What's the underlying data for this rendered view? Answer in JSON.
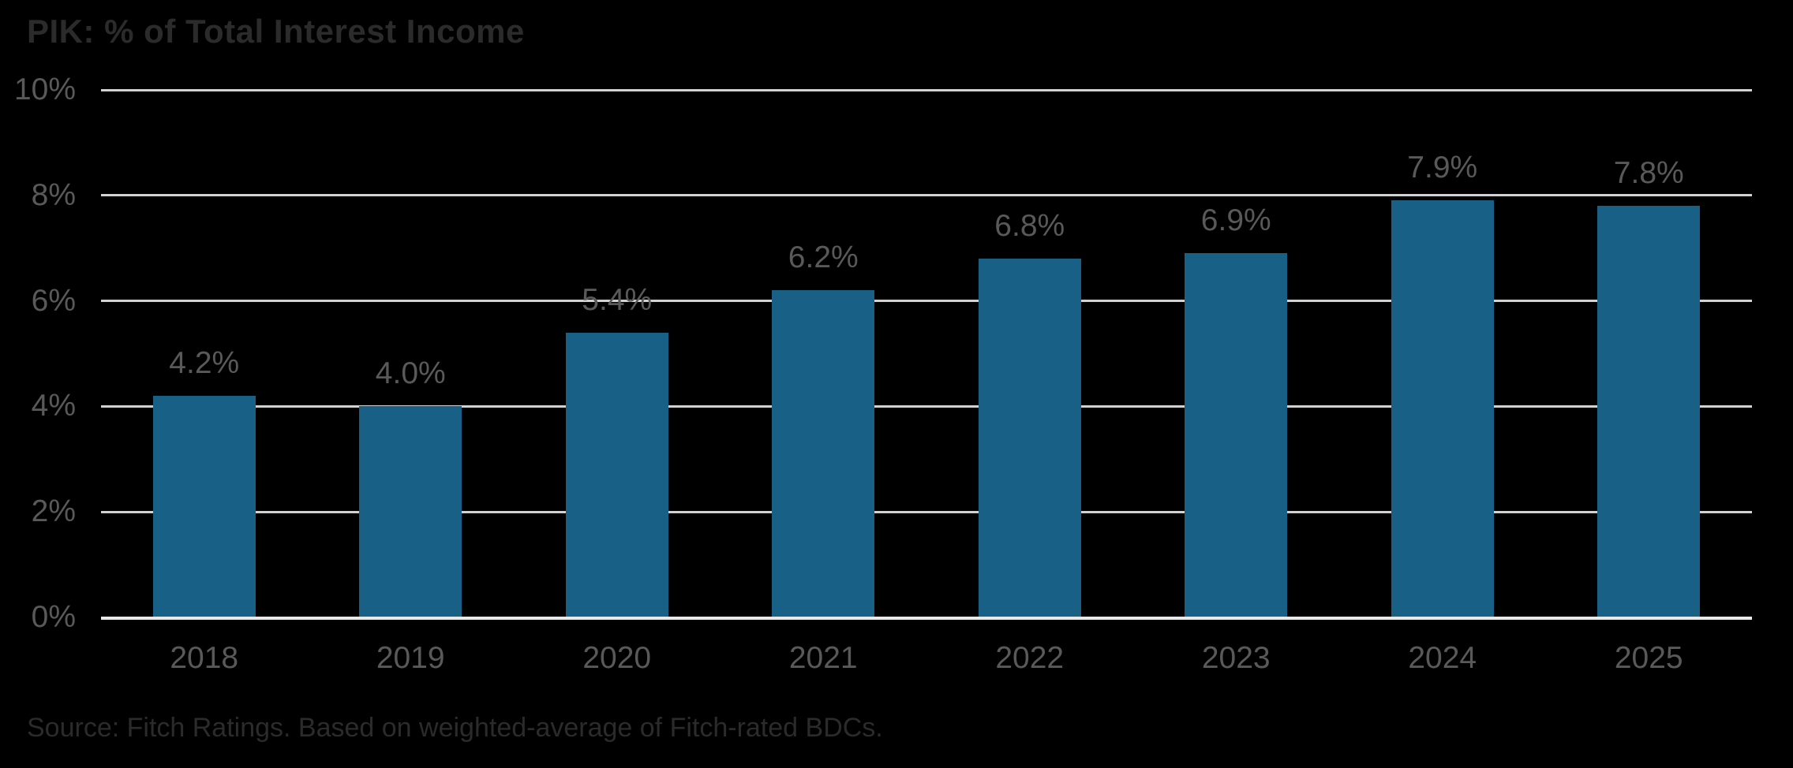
{
  "chart_data": {
    "type": "bar",
    "title": "PIK: % of Total Interest Income",
    "source": "Source: Fitch Ratings. Based on weighted-average of Fitch-rated BDCs.",
    "categories": [
      "2018",
      "2019",
      "2020",
      "2021",
      "2022",
      "2023",
      "2024",
      "2025"
    ],
    "values": [
      4.2,
      4.0,
      5.4,
      6.2,
      6.8,
      6.9,
      7.9,
      7.8
    ],
    "value_labels": [
      "4.2%",
      "4.0%",
      "5.4%",
      "6.2%",
      "6.8%",
      "6.9%",
      "7.9%",
      "7.8%"
    ],
    "xlabel": "",
    "ylabel": "",
    "ylim": [
      0,
      10
    ],
    "yticks": [
      0,
      2,
      4,
      6,
      8,
      10
    ],
    "ytick_labels": [
      "0%",
      "2%",
      "4%",
      "6%",
      "8%",
      "10%"
    ],
    "grid": "horizontal",
    "legend": "none",
    "colors": {
      "background": "#000000",
      "bar": "#186085",
      "gridline": "#d2d2d2",
      "axis_line": "#e9e9e9",
      "tick_label": "#595959",
      "data_label": "#595959",
      "title": "#2b2b2b",
      "source": "#2b2b2b"
    }
  }
}
